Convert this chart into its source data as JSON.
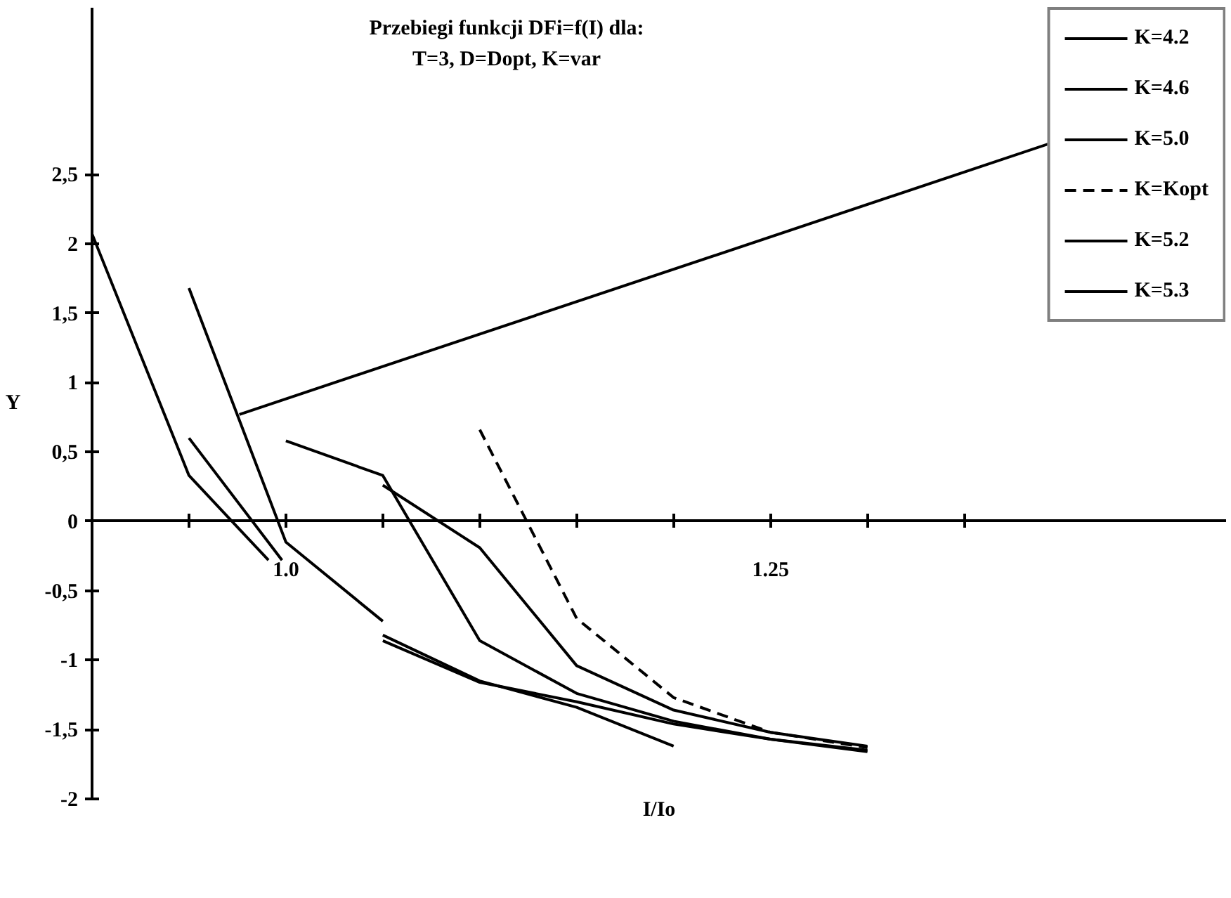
{
  "chart_data": {
    "type": "line",
    "title": "Przebiegi funkcji DFi=f(I) dla:",
    "subtitle": "T=3, D=Dopt, K=var",
    "xlabel": "I/Io",
    "ylabel": "Y",
    "series": [
      {
        "name": "K=4.2",
        "color": "#000000",
        "x": [
          0.9,
          0.95,
          0.991,
          1.014,
          1.05,
          1.1,
          1.15,
          1.2
        ],
        "values": [
          2.07,
          0.33,
          -0.28,
          null,
          -0.82,
          -1.15,
          -1.34,
          -1.62
        ]
      },
      {
        "name": "K=4.6",
        "color": "#000000",
        "x": [
          0.95,
          0.998,
          1.014,
          1.05,
          1.1,
          1.15,
          1.2,
          1.25,
          1.3
        ],
        "values": [
          0.6,
          -0.28,
          null,
          -0.86,
          -1.16,
          -1.3,
          -1.46,
          -1.57,
          -1.65
        ]
      },
      {
        "name": "K=5.0",
        "color": "#000000",
        "x": [
          0.95,
          1.0,
          1.05
        ],
        "values": [
          1.68,
          -0.15,
          -0.72
        ]
      },
      {
        "name": "K=Kopt",
        "color": "#000000",
        "line_style": "dashed",
        "x": [
          1.1,
          1.15,
          1.2,
          1.25,
          1.3
        ],
        "values": [
          0.66,
          -0.7,
          -1.27,
          -1.52,
          -1.63
        ]
      },
      {
        "name": "K=5.2",
        "color": "#000000",
        "x": [
          1.0,
          1.05,
          1.1,
          1.15,
          1.2,
          1.25,
          1.3
        ],
        "values": [
          0.58,
          0.33,
          -0.86,
          -1.24,
          -1.44,
          -1.57,
          -1.66
        ]
      },
      {
        "name": "K=5.3",
        "color": "#000000",
        "x": [
          1.05,
          1.1,
          1.15,
          1.2,
          1.25,
          1.3
        ],
        "values": [
          0.26,
          -0.19,
          -1.04,
          -1.36,
          -1.52,
          -1.62
        ]
      }
    ],
    "xlim": [
      0.9,
      1.485
    ],
    "ylim": [
      -2,
      3.7
    ],
    "xticks": [
      {
        "value": 0.95,
        "label": null
      },
      {
        "value": 1.0,
        "label": "1.0"
      },
      {
        "value": 1.05,
        "label": null
      },
      {
        "value": 1.1,
        "label": null
      },
      {
        "value": 1.15,
        "label": null
      },
      {
        "value": 1.2,
        "label": null
      },
      {
        "value": 1.25,
        "label": "1.25"
      },
      {
        "value": 1.3,
        "label": null
      },
      {
        "value": 1.35,
        "label": null
      }
    ],
    "yticks": [
      -2,
      {
        "value": -1.5,
        "label": "-1,5"
      },
      -1,
      {
        "value": -0.5,
        "label": "-0,5"
      },
      0,
      {
        "value": 0.5,
        "label": "0,5"
      },
      1,
      {
        "value": 1.5,
        "label": "1,5"
      },
      2,
      {
        "value": 2.5,
        "label": "2,5"
      }
    ],
    "grid": false,
    "legend": "top right",
    "marker": "none",
    "line_style": "solid"
  }
}
